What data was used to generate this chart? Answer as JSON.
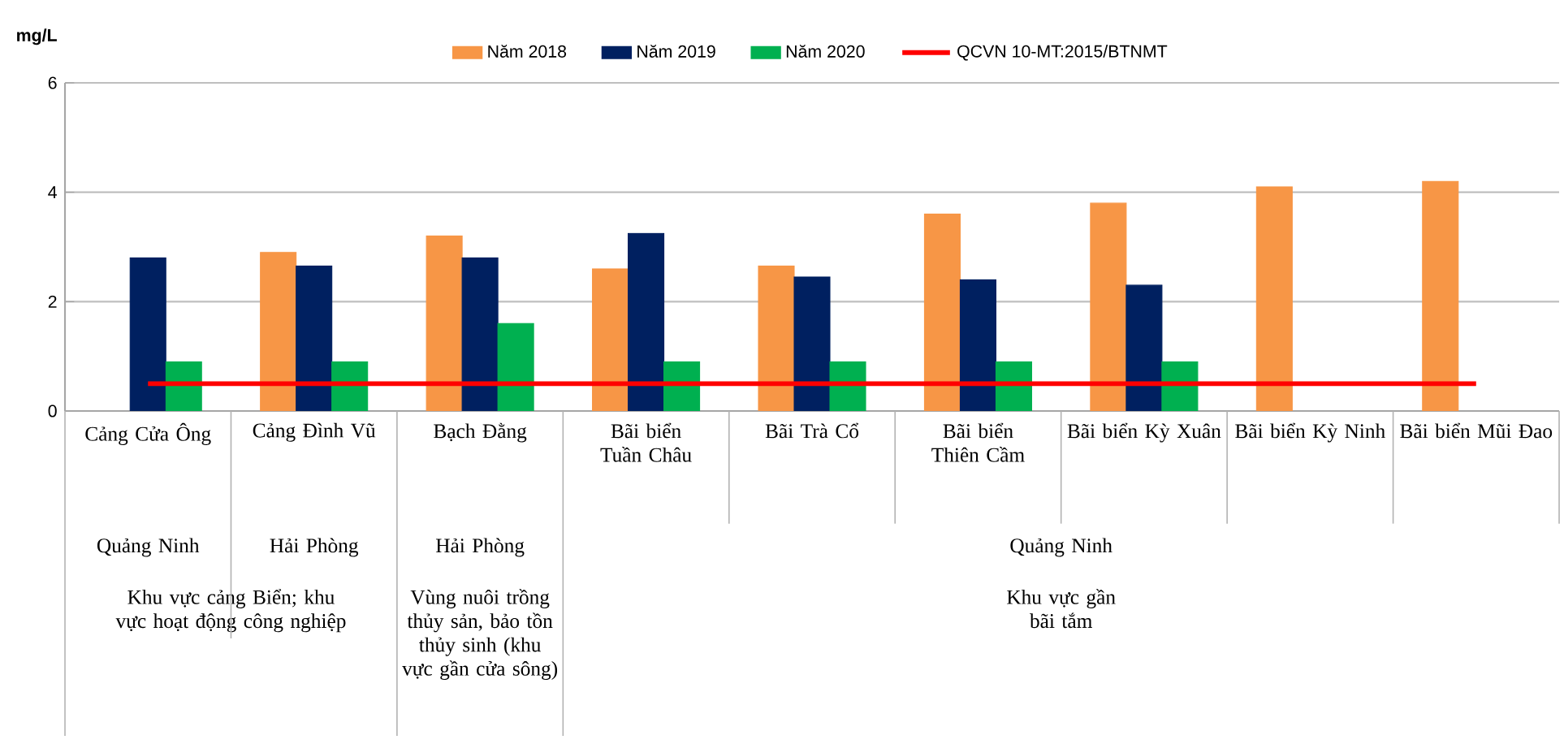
{
  "chart_data": {
    "type": "bar",
    "ylabel": "mg/L",
    "categories": [
      "Cảng Cửa Ông",
      "Cảng Đình Vũ",
      "Bạch Đằng",
      "Bãi biển Tuần Châu",
      "Bãi Trà Cổ",
      "Bãi biển Thiên Cầm",
      "Bãi biển Kỳ Xuân",
      "Bãi biển Kỳ Ninh",
      "Bãi biển Mũi Đao"
    ],
    "series": [
      {
        "name": "Năm 2018",
        "color": "#f79646",
        "values": [
          null,
          2.9,
          3.2,
          2.6,
          2.65,
          3.6,
          3.8,
          4.1,
          4.2
        ]
      },
      {
        "name": "Năm 2019",
        "color": "#002060",
        "values": [
          2.8,
          2.65,
          2.8,
          3.25,
          2.45,
          2.4,
          2.3,
          null,
          null
        ]
      },
      {
        "name": "Năm 2020",
        "color": "#00b050",
        "values": [
          0.9,
          0.9,
          1.6,
          0.9,
          0.9,
          0.9,
          0.9,
          null,
          null
        ]
      },
      {
        "name": "QCVN 10-MT:2015/BTNMT",
        "type": "line",
        "color": "#ff0000",
        "values": [
          0.5,
          0.5,
          0.5,
          0.5,
          0.5,
          0.5,
          0.5,
          0.5,
          0.5
        ]
      }
    ],
    "annotations": [
      "Quảng Ninh",
      "Hải Phòng",
      "Hải Phòng",
      "Quảng Ninh",
      "Khu vực cảng Biển; khu vực hoạt động công nghiệp",
      "Vùng nuôi trồng thủy sản, bảo tồn thủy sinh (khu vực gần cửa sông)",
      "Khu vực gần bãi tắm"
    ],
    "ylim": [
      0,
      6
    ],
    "yticks": [
      0,
      2,
      4,
      6
    ],
    "grid": "y",
    "legend": "top"
  }
}
